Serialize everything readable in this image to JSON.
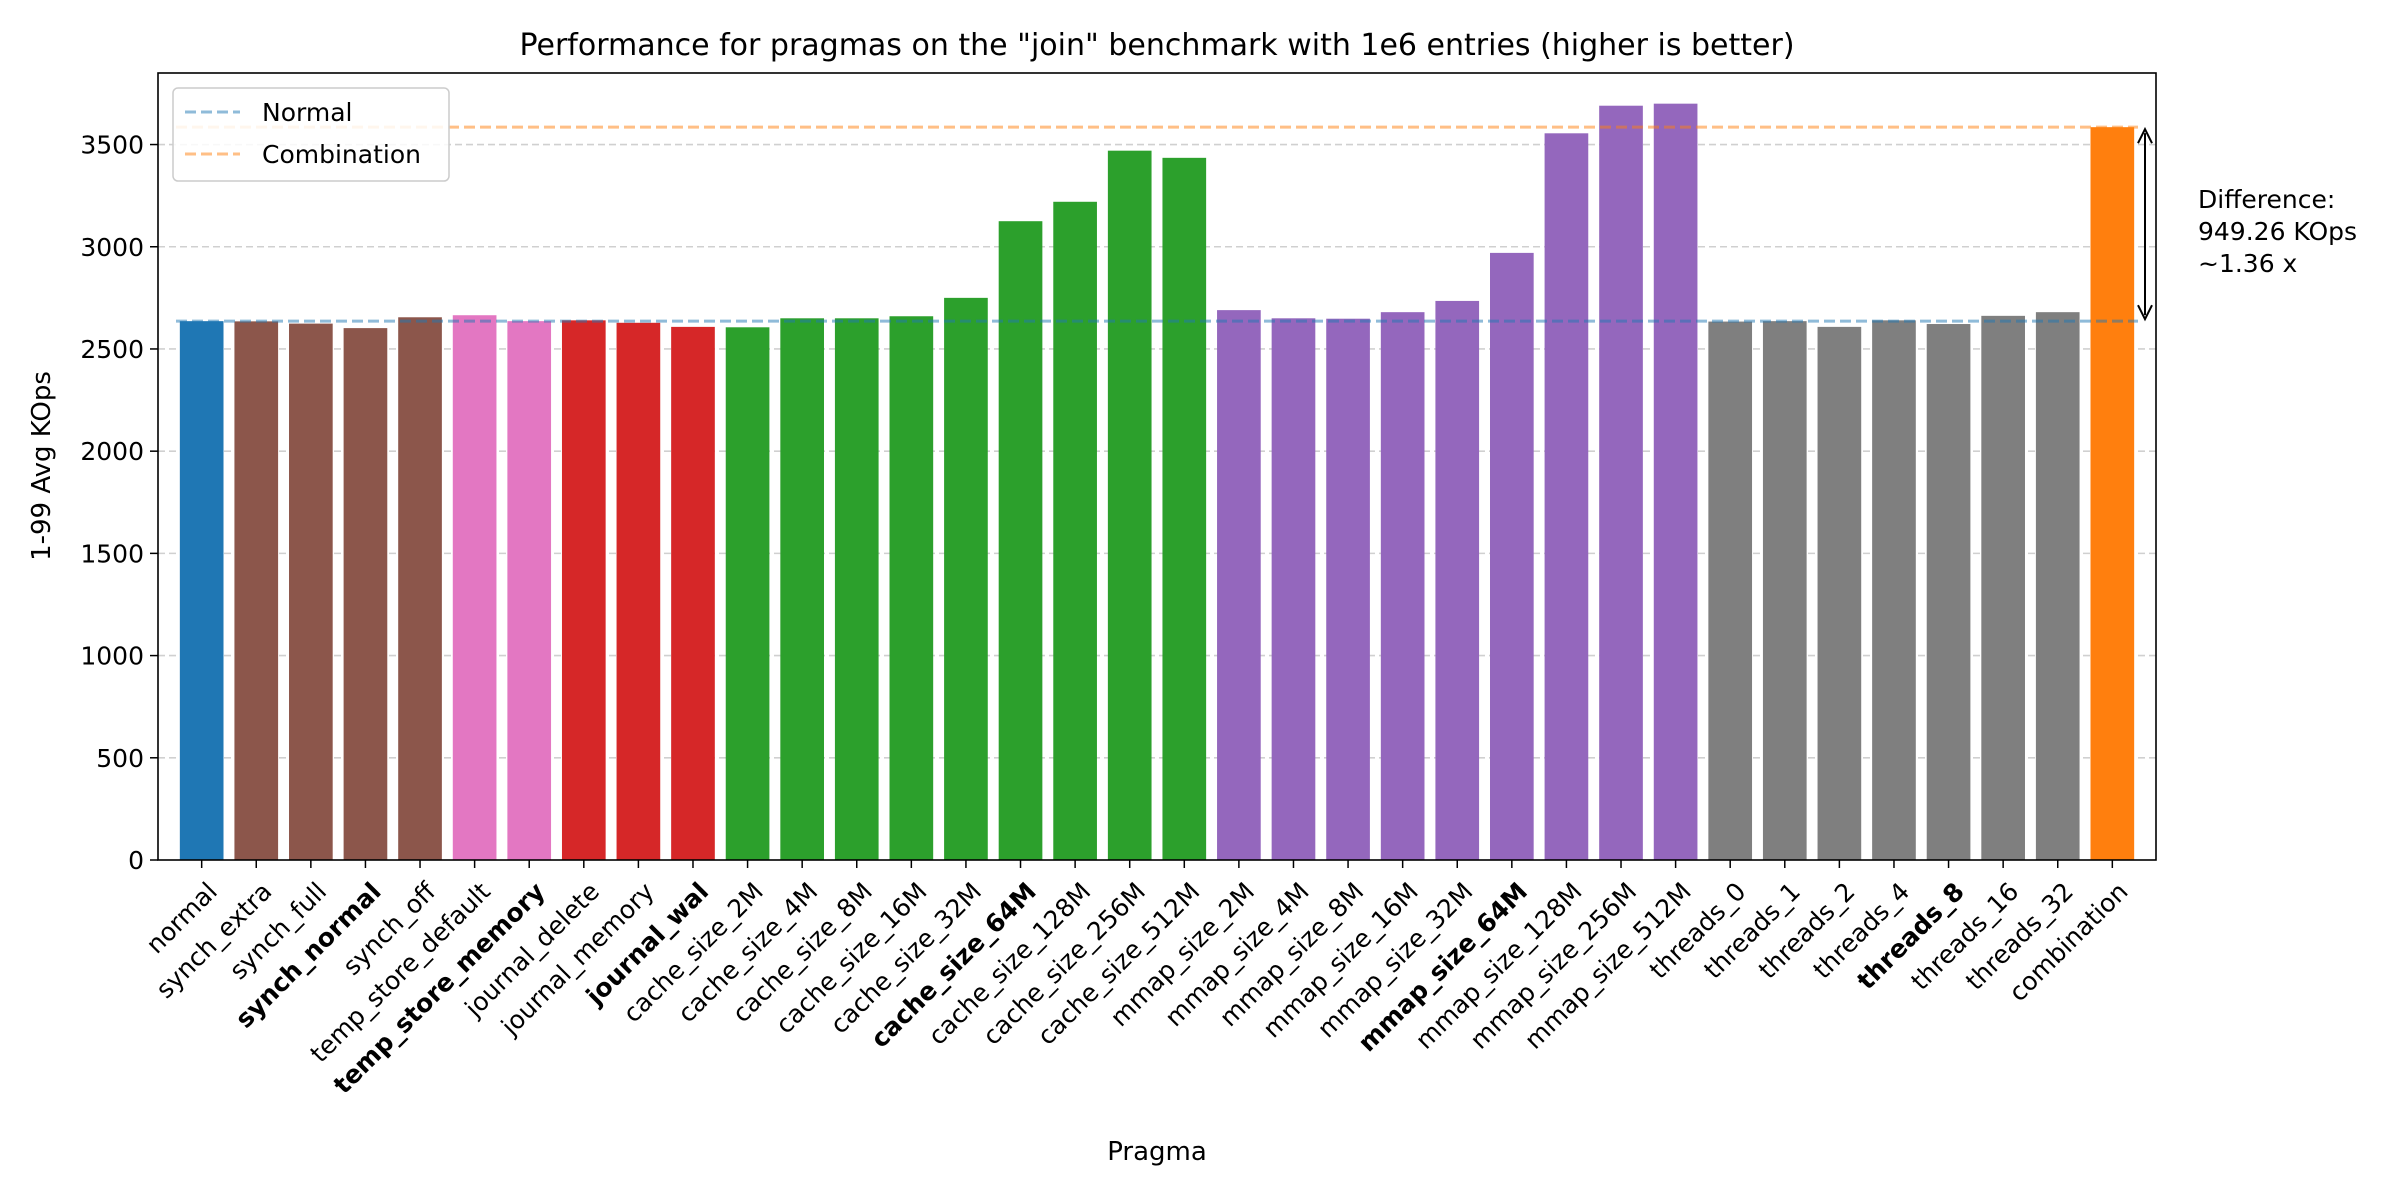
{
  "chart_data": {
    "type": "bar",
    "title": "Performance for pragmas on the \"join\" benchmark with 1e6 entries (higher is better)",
    "xlabel": "Pragma",
    "ylabel": "1-99 Avg KOps",
    "ylim": [
      0,
      3850
    ],
    "yticks": [
      0,
      500,
      1000,
      1500,
      2000,
      2500,
      3000,
      3500
    ],
    "grid": "horizontal dashed",
    "categories": [
      "normal",
      "synch_extra",
      "synch_full",
      "synch_normal",
      "synch_off",
      "temp_store_default",
      "temp_store_memory",
      "journal_delete",
      "journal_memory",
      "journal_wal",
      "cache_size_2M",
      "cache_size_4M",
      "cache_size_8M",
      "cache_size_16M",
      "cache_size_32M",
      "cache_size_64M",
      "cache_size_128M",
      "cache_size_256M",
      "cache_size_512M",
      "mmap_size_2M",
      "mmap_size_4M",
      "mmap_size_8M",
      "mmap_size_16M",
      "mmap_size_32M",
      "mmap_size_64M",
      "mmap_size_128M",
      "mmap_size_256M",
      "mmap_size_512M",
      "threads_0",
      "threads_1",
      "threads_2",
      "threads_4",
      "threads_8",
      "threads_16",
      "threads_32",
      "combination"
    ],
    "values": [
      2636,
      2635,
      2624,
      2602,
      2655,
      2665,
      2636,
      2640,
      2628,
      2608,
      2606,
      2650,
      2650,
      2660,
      2750,
      3125,
      3220,
      3470,
      3435,
      2690,
      2650,
      2648,
      2680,
      2735,
      2970,
      3555,
      3690,
      3700,
      2634,
      2636,
      2608,
      2640,
      2622,
      2662,
      2680,
      3585
    ],
    "bold_categories": [
      "synch_normal",
      "temp_store_memory",
      "journal_wal",
      "cache_size_64M",
      "mmap_size_64M",
      "threads_8"
    ],
    "colors": [
      "#1f77b4",
      "#8c564b",
      "#8c564b",
      "#8c564b",
      "#8c564b",
      "#e377c2",
      "#e377c2",
      "#d62728",
      "#d62728",
      "#d62728",
      "#2ca02c",
      "#2ca02c",
      "#2ca02c",
      "#2ca02c",
      "#2ca02c",
      "#2ca02c",
      "#2ca02c",
      "#2ca02c",
      "#2ca02c",
      "#9467bd",
      "#9467bd",
      "#9467bd",
      "#9467bd",
      "#9467bd",
      "#9467bd",
      "#9467bd",
      "#9467bd",
      "#9467bd",
      "#7f7f7f",
      "#7f7f7f",
      "#7f7f7f",
      "#7f7f7f",
      "#7f7f7f",
      "#7f7f7f",
      "#7f7f7f",
      "#ff7f0e"
    ],
    "reference_lines": [
      {
        "name": "Normal",
        "value": 2636,
        "color": "#1f77b4"
      },
      {
        "name": "Combination",
        "value": 3585,
        "color": "#ff7f0e"
      }
    ],
    "legend": {
      "placement": "top-left"
    },
    "annotation": {
      "lines": [
        "Difference:",
        "949.26 KOps",
        "~1.36 x"
      ],
      "from": 2636,
      "to": 3585
    }
  }
}
